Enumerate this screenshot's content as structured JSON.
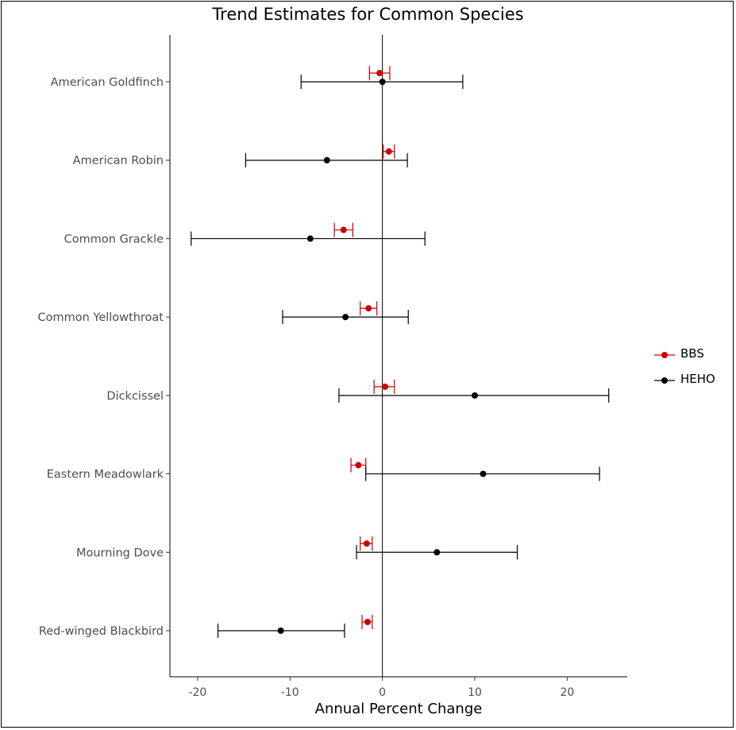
{
  "chart_data": {
    "type": "scatter",
    "title": "Trend Estimates for Common Species",
    "xlabel": "Annual Percent Change",
    "ylabel": "",
    "xlim": [
      -23,
      26.5
    ],
    "x_ticks": [
      -20,
      -10,
      0,
      10,
      20
    ],
    "x_tick_labels": [
      "-20",
      "-10",
      "0",
      "10",
      "20"
    ],
    "reference_line_x": 0,
    "grid": false,
    "legend_position": "right",
    "categories": [
      "American Goldfinch",
      "American Robin",
      "Common Grackle",
      "Common Yellowthroat",
      "Dickcissel",
      "Eastern Meadowlark",
      "Mourning Dove",
      "Red-winged Blackbird"
    ],
    "series": [
      {
        "name": "BBS",
        "color": "#cc0000",
        "estimate": [
          -0.3,
          0.7,
          -4.2,
          -1.5,
          0.3,
          -2.6,
          -1.7,
          -1.6
        ],
        "lower": [
          -1.4,
          0.1,
          -5.2,
          -2.4,
          -0.9,
          -3.4,
          -2.4,
          -2.2
        ],
        "upper": [
          0.8,
          1.3,
          -3.2,
          -0.6,
          1.3,
          -1.8,
          -1.1,
          -1.1
        ]
      },
      {
        "name": "HEHO",
        "color": "#000000",
        "estimate": [
          0.0,
          -6.0,
          -7.8,
          -4.0,
          10.0,
          10.9,
          5.9,
          -11.0
        ],
        "lower": [
          -8.8,
          -14.8,
          -20.7,
          -10.8,
          -4.7,
          -1.8,
          -2.8,
          -17.8
        ],
        "upper": [
          8.7,
          2.7,
          4.6,
          2.8,
          24.5,
          23.5,
          14.6,
          -4.1
        ]
      }
    ]
  }
}
